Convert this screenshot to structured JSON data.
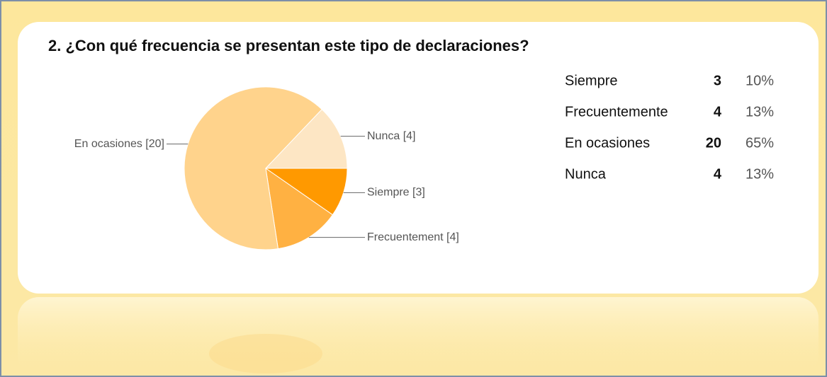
{
  "chart_data": {
    "type": "pie",
    "title": "2. ¿Con qué frecuencia se presentan este tipo de declaraciones?",
    "categories": [
      "Siempre",
      "Frecuentemente",
      "En ocasiones",
      "Nunca"
    ],
    "values": [
      3,
      4,
      20,
      4
    ],
    "value_labels": [
      "Siempre [3]",
      "Frecuentement [4]",
      "En ocasiones [20]",
      "Nunca [4]"
    ],
    "colors": [
      "#ff9900",
      "#ffb142",
      "#ffd38c",
      "#fde6c4"
    ],
    "percentages": [
      10,
      13,
      65,
      13
    ],
    "percentage_labels": [
      "10%",
      "13%",
      "65%",
      "13%"
    ]
  }
}
